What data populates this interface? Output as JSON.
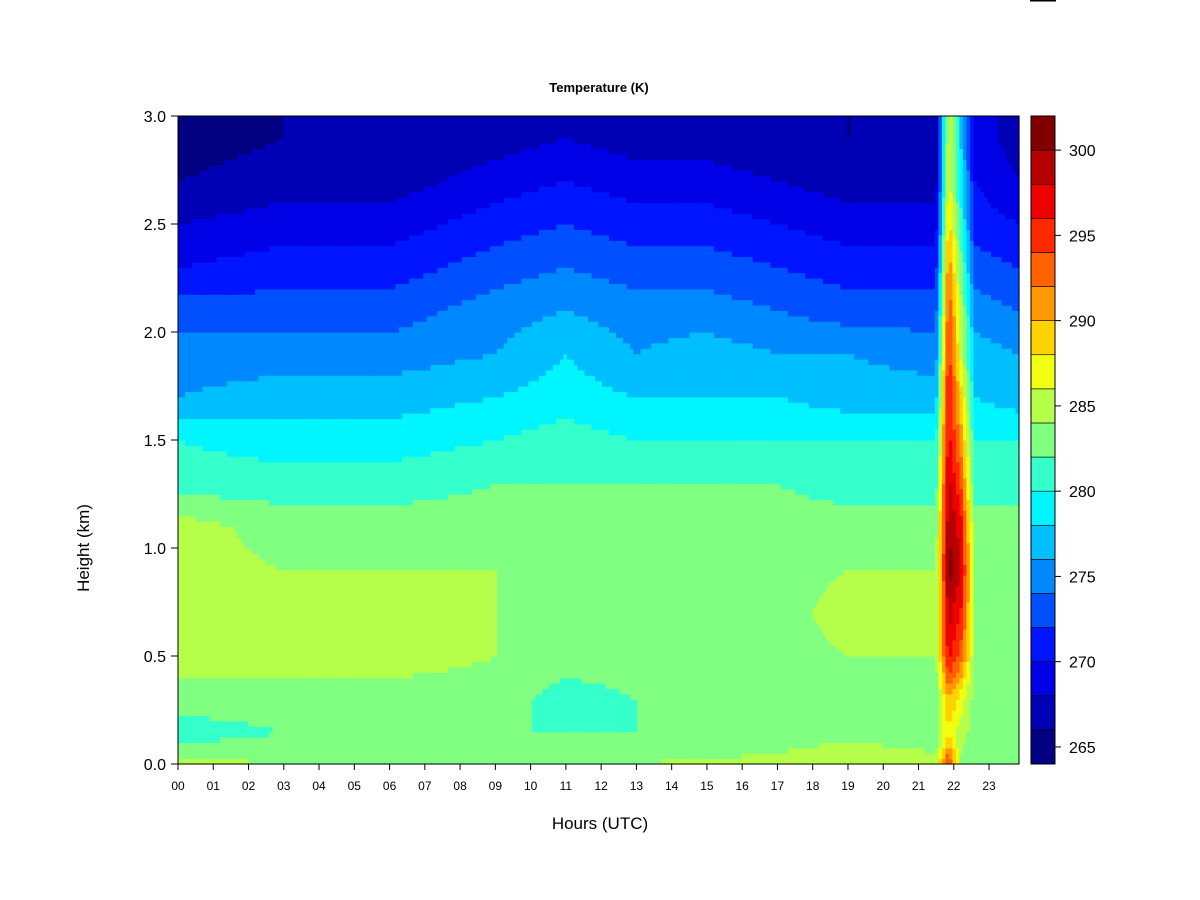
{
  "chart_data": {
    "type": "heatmap",
    "title": "Temperature (K)",
    "xlabel": "Hours (UTC)",
    "ylabel": "Height (km)",
    "x_ticks": [
      "00",
      "01",
      "02",
      "03",
      "04",
      "05",
      "06",
      "07",
      "08",
      "09",
      "10",
      "11",
      "12",
      "13",
      "14",
      "15",
      "16",
      "17",
      "18",
      "19",
      "20",
      "21",
      "22",
      "23"
    ],
    "xlim": [
      0,
      23.85
    ],
    "y_ticks": [
      "0.0",
      "0.5",
      "1.0",
      "1.5",
      "2.0",
      "2.5",
      "3.0"
    ],
    "ylim": [
      0,
      3.0
    ],
    "colorbar": {
      "range": [
        264,
        302
      ],
      "tick_values": [
        265,
        270,
        275,
        280,
        285,
        290,
        295,
        300
      ],
      "tick_labels": [
        "265",
        "270",
        "275",
        "280",
        "285",
        "290",
        "295",
        "300"
      ],
      "levels": [
        264,
        266,
        268,
        270,
        272,
        274,
        276,
        278,
        280,
        282,
        284,
        286,
        288,
        290,
        292,
        294,
        296,
        298,
        300,
        302
      ],
      "colors": [
        "#000080",
        "#0000b4",
        "#0000e6",
        "#0015ff",
        "#0050ff",
        "#0088ff",
        "#00bfff",
        "#00f5ff",
        "#35ffca",
        "#80ff80",
        "#b5ff4a",
        "#f0ff0f",
        "#ffd200",
        "#ff9800",
        "#ff6000",
        "#ff2800",
        "#ee0000",
        "#b40000",
        "#800000"
      ]
    },
    "profile_heights_km": [
      0.0,
      0.05,
      0.15,
      0.3,
      0.5,
      0.7,
      0.9,
      1.1,
      1.3,
      1.5,
      1.7,
      1.9,
      2.1,
      2.3,
      2.5,
      2.7,
      2.9,
      3.0
    ],
    "profile_times_utc": [
      0,
      3,
      6,
      9,
      11,
      13,
      15,
      17,
      19,
      21.5,
      21.85,
      22.2,
      22.6,
      23.85
    ],
    "temperature_k": [
      [
        285,
        283,
        281,
        283,
        285,
        286,
        285,
        285,
        281,
        280,
        276,
        275,
        273,
        270,
        268,
        266,
        265,
        265
      ],
      [
        284,
        283,
        282,
        283,
        285,
        285,
        284,
        283,
        281,
        279,
        277,
        275,
        273,
        271,
        269,
        267,
        266,
        266
      ],
      [
        284,
        283,
        282,
        283,
        285,
        285,
        284,
        283,
        281,
        279,
        277,
        275,
        273,
        271,
        269,
        267,
        266,
        266
      ],
      [
        284,
        283,
        282,
        283,
        284,
        284,
        284,
        283,
        282,
        280,
        278,
        276,
        275,
        273,
        271,
        269,
        267,
        267
      ],
      [
        284,
        283,
        282,
        281,
        283,
        283,
        283,
        283,
        282,
        281,
        279,
        278,
        276,
        274,
        272,
        270,
        268,
        268
      ],
      [
        284,
        283,
        282,
        282,
        283,
        283,
        283,
        283,
        282,
        280,
        278,
        276,
        275,
        273,
        271,
        269,
        267,
        267
      ],
      [
        285,
        283,
        282,
        282,
        283,
        283,
        283,
        283,
        282,
        280,
        278,
        277,
        275,
        273,
        271,
        269,
        267,
        267
      ],
      [
        286,
        284,
        283,
        283,
        283,
        283,
        283,
        283,
        282,
        280,
        278,
        276,
        274,
        272,
        270,
        268,
        266,
        266
      ],
      [
        286,
        285,
        283,
        283,
        284,
        285,
        284,
        283,
        281,
        280,
        277,
        276,
        273,
        271,
        269,
        267,
        266,
        266
      ],
      [
        285,
        284,
        283,
        283,
        284,
        284,
        284,
        283,
        281,
        280,
        277,
        275,
        273,
        271,
        269,
        267,
        266,
        266
      ],
      [
        296,
        292,
        288,
        290,
        297,
        299,
        301,
        300,
        299,
        297,
        297,
        295,
        294,
        292,
        289,
        287,
        286,
        286
      ],
      [
        284,
        284,
        285,
        287,
        293,
        296,
        298,
        297,
        294,
        291,
        289,
        286,
        285,
        283,
        281,
        279,
        278,
        278
      ],
      [
        284,
        283,
        283,
        283,
        284,
        284,
        284,
        283,
        281,
        280,
        278,
        277,
        275,
        273,
        271,
        270,
        269,
        269
      ],
      [
        284,
        283,
        282,
        282,
        283,
        283,
        283,
        283,
        281,
        280,
        277,
        276,
        274,
        272,
        270,
        268,
        267,
        267
      ]
    ]
  }
}
